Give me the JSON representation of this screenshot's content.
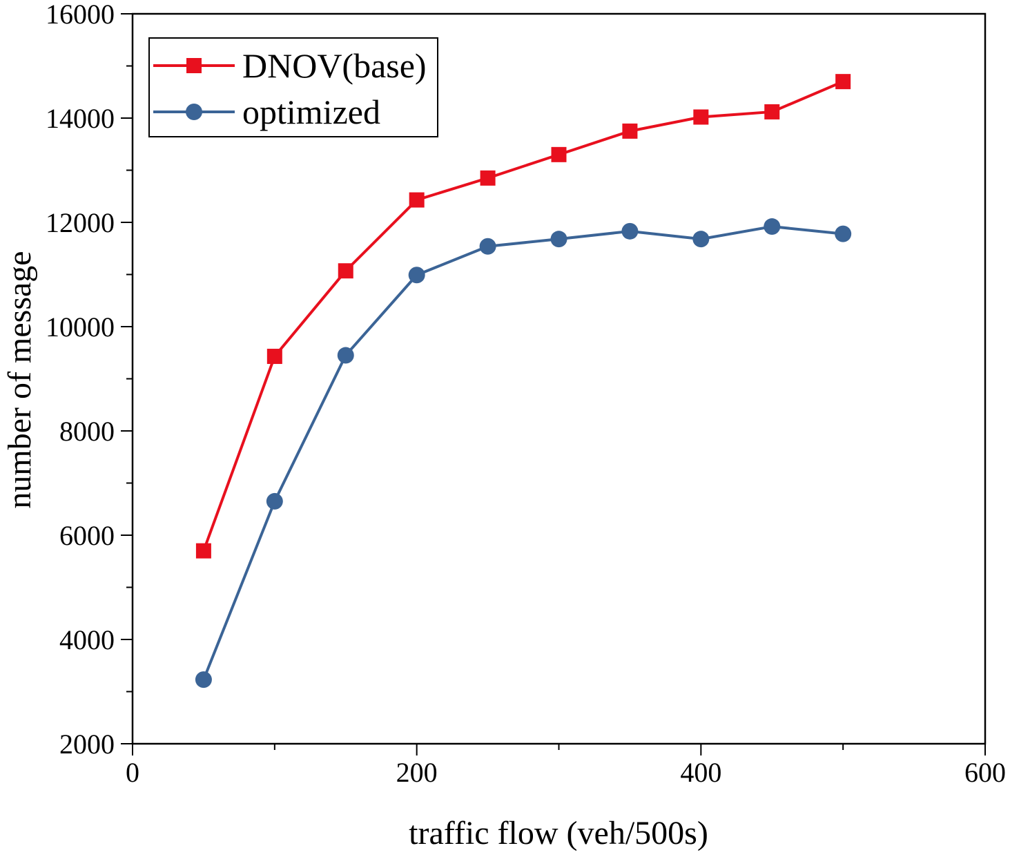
{
  "chart_data": {
    "type": "line",
    "title": "",
    "xlabel": "traffic flow (veh/500s)",
    "ylabel": "number of message",
    "xlim": [
      0,
      600
    ],
    "ylim": [
      2000,
      16000
    ],
    "xticks": [
      0,
      200,
      400,
      600
    ],
    "yticks": [
      2000,
      4000,
      6000,
      8000,
      10000,
      12000,
      14000,
      16000
    ],
    "x_minor_step": 100,
    "y_minor_step": 1000,
    "grid": false,
    "legend_position": "top-left",
    "x": [
      50,
      100,
      150,
      200,
      250,
      300,
      350,
      400,
      450,
      500
    ],
    "series": [
      {
        "name": "DNOV(base)",
        "color": "#e8101e",
        "marker": "square",
        "values": [
          5700,
          9430,
          11070,
          12430,
          12850,
          13300,
          13750,
          14020,
          14120,
          14700
        ]
      },
      {
        "name": "optimized",
        "color": "#3b6496",
        "marker": "circle",
        "values": [
          3230,
          6650,
          9450,
          10990,
          11540,
          11680,
          11830,
          11680,
          11920,
          11780
        ]
      }
    ]
  }
}
